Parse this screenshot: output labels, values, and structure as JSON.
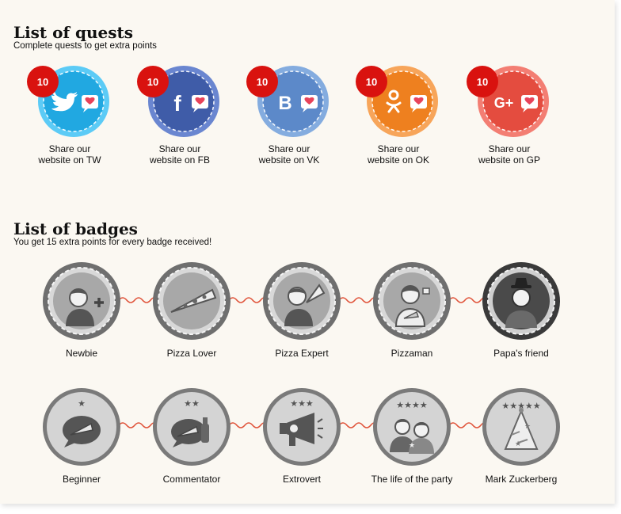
{
  "quests": {
    "title": "List of quests",
    "subtitle": "Complete quests to get extra points",
    "items": [
      {
        "points": "10",
        "line1": "Share our",
        "line2": "website on TW",
        "network_icon": "twitter-icon",
        "glyph": "",
        "color": "#1ea7e0",
        "ring": "#5ccbf6"
      },
      {
        "points": "10",
        "line1": "Share our",
        "line2": "website on FB",
        "network_icon": "facebook-icon",
        "glyph": "f",
        "color": "#3d5aa6",
        "ring": "#6a86d0"
      },
      {
        "points": "10",
        "line1": "Share our",
        "line2": "website on VK",
        "network_icon": "vk-icon",
        "glyph": "B",
        "color": "#5a88c8",
        "ring": "#84acdf"
      },
      {
        "points": "10",
        "line1": "Share our",
        "line2": "website on OK",
        "network_icon": "odnoklassniki-icon",
        "glyph": "",
        "color": "#ee7f1c",
        "ring": "#f7a55a"
      },
      {
        "points": "10",
        "line1": "Share our",
        "line2": "website on GP",
        "network_icon": "google-plus-icon",
        "glyph": "G+",
        "color": "#e44a3d",
        "ring": "#f37e73"
      }
    ]
  },
  "badges": {
    "title": "List of badges",
    "subtitle": "You get 15 extra points for every badge received!",
    "row1": [
      {
        "label": "Newbie",
        "icon": "person-plus-icon"
      },
      {
        "label": "Pizza Lover",
        "icon": "pizza-slice-icon"
      },
      {
        "label": "Pizza Expert",
        "icon": "person-pizza-icon"
      },
      {
        "label": "Pizzaman",
        "icon": "pizzaman-icon"
      },
      {
        "label": "Papa's friend",
        "icon": "hat-person-icon"
      }
    ],
    "row2": [
      {
        "label": "Beginner",
        "icon": "speech-bubble-pizza-icon",
        "stars": 1
      },
      {
        "label": "Commentator",
        "icon": "speech-bubble-bottle-icon",
        "stars": 2
      },
      {
        "label": "Extrovert",
        "icon": "megaphone-icon",
        "stars": 3
      },
      {
        "label": "The life of the party",
        "icon": "party-people-icon",
        "stars": 4
      },
      {
        "label": "Mark Zuckerberg",
        "icon": "party-hat-icon",
        "stars": 5
      }
    ]
  },
  "colors": {
    "points_badge": "#d9120f",
    "connector": "#e0533a",
    "badge_ring": "#6f6f6f",
    "badge_inner": "#a8a8a8"
  }
}
